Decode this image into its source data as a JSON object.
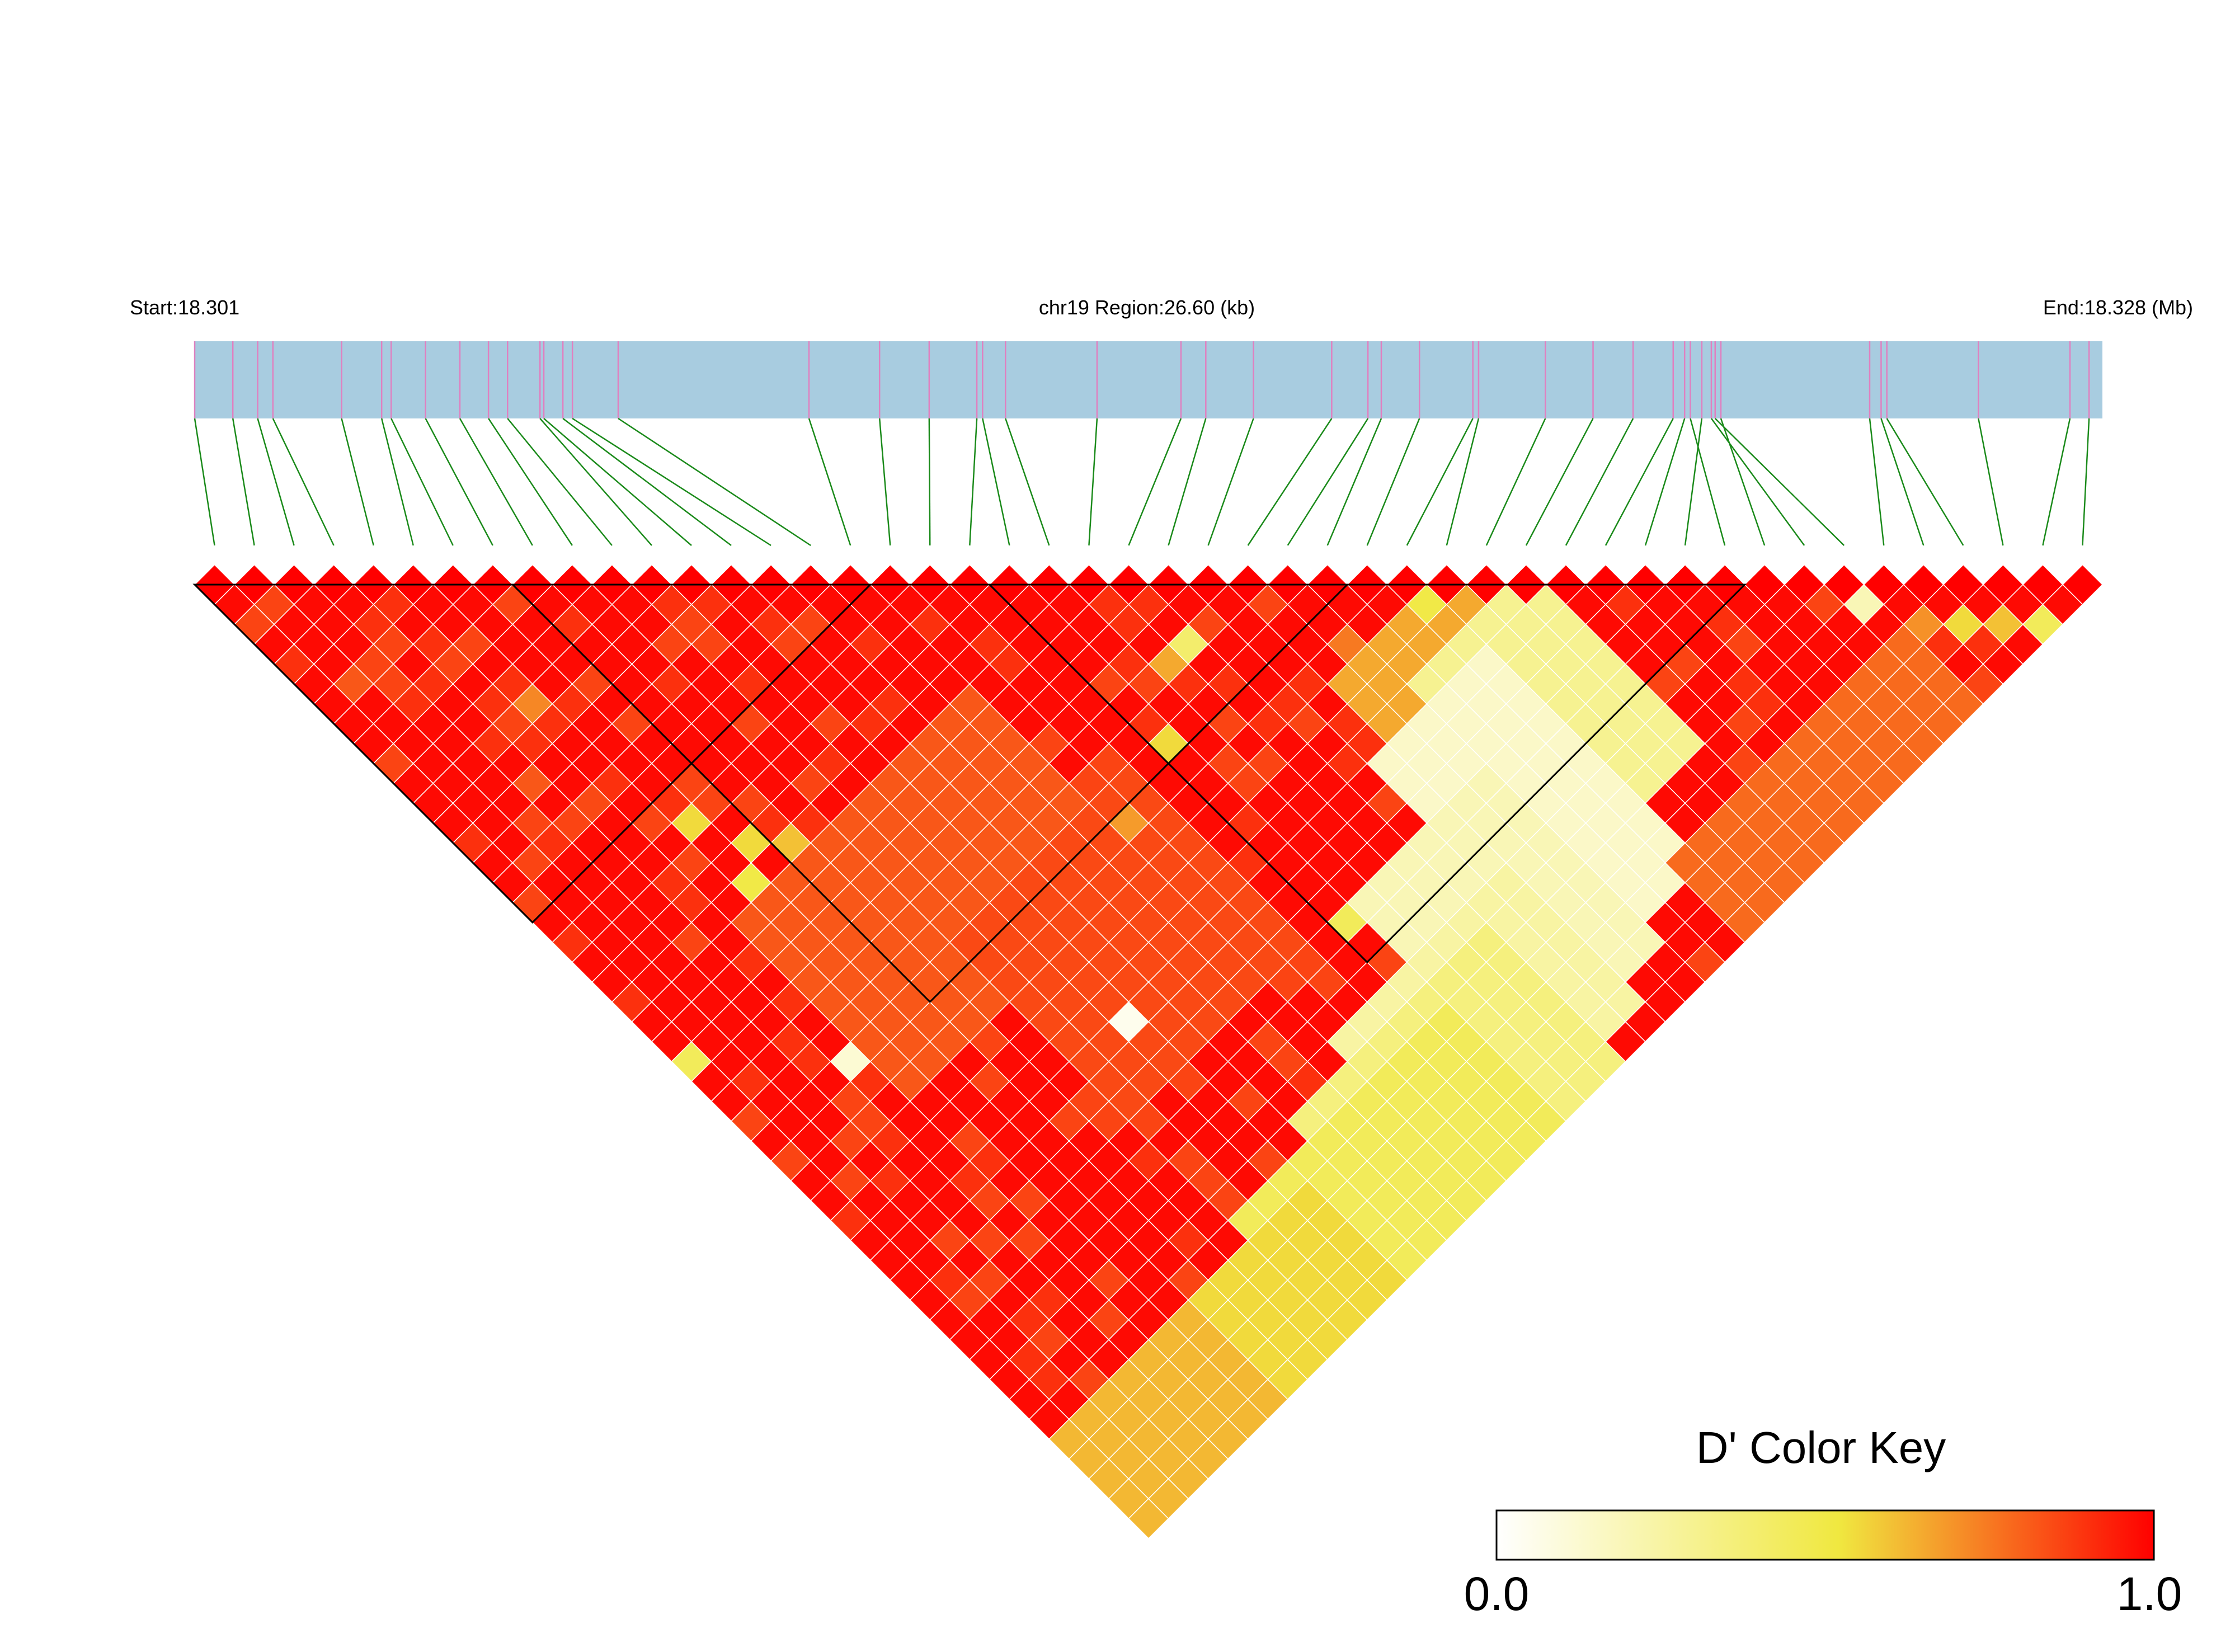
{
  "chart_data": {
    "type": "heatmap",
    "subtype": "LD block plot (D')",
    "region": {
      "start_label": "Start:18.301",
      "title": "chr19 Region:26.60 (kb)",
      "end_label": "End:18.328 (Mb)",
      "start_mb": 18.301,
      "end_mb": 18.328,
      "length_kb": 26.6
    },
    "n_snps": 48,
    "snp_positions_frac": [
      0.0,
      0.02,
      0.033,
      0.041,
      0.077,
      0.098,
      0.103,
      0.121,
      0.139,
      0.154,
      0.164,
      0.181,
      0.183,
      0.193,
      0.198,
      0.222,
      0.322,
      0.359,
      0.385,
      0.41,
      0.413,
      0.425,
      0.473,
      0.517,
      0.53,
      0.555,
      0.596,
      0.615,
      0.622,
      0.642,
      0.67,
      0.673,
      0.708,
      0.733,
      0.754,
      0.775,
      0.781,
      0.79,
      0.784,
      0.8,
      0.795,
      0.797,
      0.878,
      0.884,
      0.887,
      0.935,
      0.983,
      0.993
    ],
    "default_d_prime": 0.95,
    "d_prime_cells": [
      {
        "i": 5,
        "j": 11,
        "d": 0.72
      },
      {
        "i": 6,
        "j": 18,
        "d": 0.55
      },
      {
        "i": 7,
        "j": 20,
        "d": 0.55
      },
      {
        "i": 8,
        "j": 21,
        "d": 0.6
      },
      {
        "i": 6,
        "j": 21,
        "d": 0.5
      },
      {
        "i": 1,
        "j": 6,
        "d": 0.82
      },
      {
        "i": 3,
        "j": 13,
        "d": 0.82
      },
      {
        "i": 4,
        "j": 15,
        "d": 0.85
      },
      {
        "i": 0,
        "j": 24,
        "d": 0.45
      },
      {
        "i": 4,
        "j": 28,
        "d": 0.12
      },
      {
        "i": 12,
        "j": 34,
        "d": 0.05
      },
      {
        "i": 23,
        "j": 26,
        "d": 0.4
      },
      {
        "i": 22,
        "j": 26,
        "d": 0.65
      },
      {
        "i": 20,
        "j": 28,
        "d": 0.55
      },
      {
        "i": 17,
        "j": 29,
        "d": 0.68
      },
      {
        "i": 27,
        "j": 30,
        "d": 0.75
      },
      {
        "i": 20,
        "j": 37,
        "d": 0.45
      },
      {
        "i": 30,
        "j": 31,
        "d": 0.5
      },
      {
        "i": 41,
        "j": 42,
        "d": 0.2
      },
      {
        "i": 42,
        "j": 44,
        "d": 0.7
      },
      {
        "i": 43,
        "j": 45,
        "d": 0.55
      },
      {
        "i": 44,
        "j": 46,
        "d": 0.6
      },
      {
        "i": 45,
        "j": 47,
        "d": 0.45
      }
    ],
    "d_prime_bands": [
      {
        "i_from": 26,
        "i_to": 31,
        "j_from": 31,
        "j_to": 39,
        "d": 0.65
      },
      {
        "i_from": 28,
        "i_to": 33,
        "j_from": 33,
        "j_to": 41,
        "d": 0.3
      },
      {
        "i_from": 25,
        "i_to": 30,
        "j_from": 34,
        "j_to": 44,
        "d": 0.15
      },
      {
        "i_from": 21,
        "i_to": 27,
        "j_from": 37,
        "j_to": 45,
        "d": 0.2
      },
      {
        "i_from": 17,
        "i_to": 25,
        "j_from": 40,
        "j_to": 46,
        "d": 0.25
      },
      {
        "i_from": 14,
        "i_to": 23,
        "j_from": 41,
        "j_to": 47,
        "d": 0.35
      },
      {
        "i_from": 10,
        "i_to": 20,
        "j_from": 42,
        "j_to": 47,
        "d": 0.45
      },
      {
        "i_from": 3,
        "i_to": 12,
        "j_from": 43,
        "j_to": 47,
        "d": 0.55
      },
      {
        "i_from": 0,
        "i_to": 6,
        "j_from": 43,
        "j_to": 47,
        "d": 0.62
      },
      {
        "i_from": 30,
        "i_to": 41,
        "j_from": 44,
        "j_to": 47,
        "d": 0.78
      },
      {
        "i_from": 5,
        "i_to": 16,
        "j_from": 22,
        "j_to": 30,
        "d": 0.82
      },
      {
        "i_from": 10,
        "i_to": 18,
        "j_from": 28,
        "j_to": 36,
        "d": 0.85
      }
    ],
    "blocks": [
      {
        "from": 0,
        "to": 16
      },
      {
        "from": 8,
        "to": 28
      },
      {
        "from": 20,
        "to": 38
      }
    ],
    "color_key": {
      "title": "D' Color Key",
      "min_label": "0.0",
      "max_label": "1.0",
      "min": 0.0,
      "max": 1.0,
      "colors": [
        "#ffffff",
        "#f0e840",
        "#ff0000"
      ]
    },
    "track_fill": "#a8cce0",
    "snp_tick_color": "#e080c0",
    "connector_color": "#1a8a1a"
  }
}
